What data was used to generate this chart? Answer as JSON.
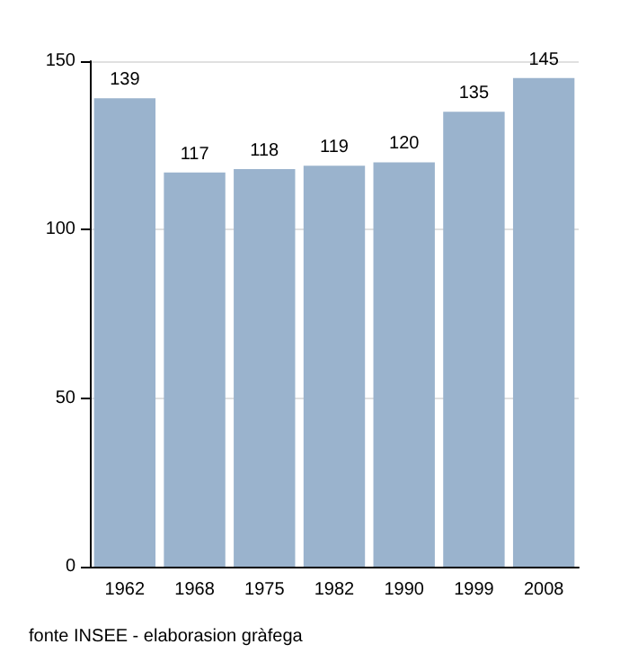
{
  "chart_data": {
    "type": "bar",
    "categories": [
      "1962",
      "1968",
      "1975",
      "1982",
      "1990",
      "1999",
      "2008"
    ],
    "values": [
      139,
      117,
      118,
      119,
      120,
      135,
      145
    ],
    "color": "#9ab3cd",
    "data_labels": true,
    "ylim": [
      0,
      150
    ],
    "yticks": [
      0,
      50,
      100,
      150
    ],
    "grid": "y",
    "annotations": [
      "fonte INSEE - elaborasion gràfega"
    ]
  }
}
